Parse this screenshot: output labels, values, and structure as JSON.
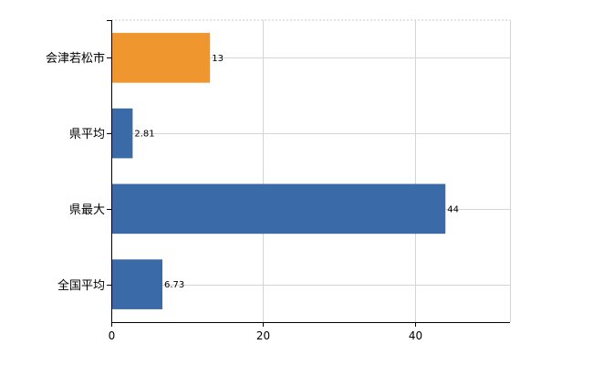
{
  "chart_data": {
    "type": "bar",
    "orientation": "horizontal",
    "categories": [
      "会津若松市",
      "県平均",
      "県最大",
      "全国平均"
    ],
    "values": [
      13,
      2.81,
      44,
      6.73
    ],
    "value_labels": [
      "13",
      "2.81",
      "44",
      "6.73"
    ],
    "bar_colors": [
      "#f0962e",
      "#3b6aa8",
      "#3b6aa8",
      "#3b6aa8"
    ],
    "xlim": [
      0,
      52.5
    ],
    "x_ticks": [
      0,
      20,
      40
    ],
    "x_tick_labels": [
      "0",
      "20",
      "40"
    ],
    "grid": true,
    "legend": "none",
    "title": "",
    "xlabel": "",
    "ylabel": ""
  }
}
